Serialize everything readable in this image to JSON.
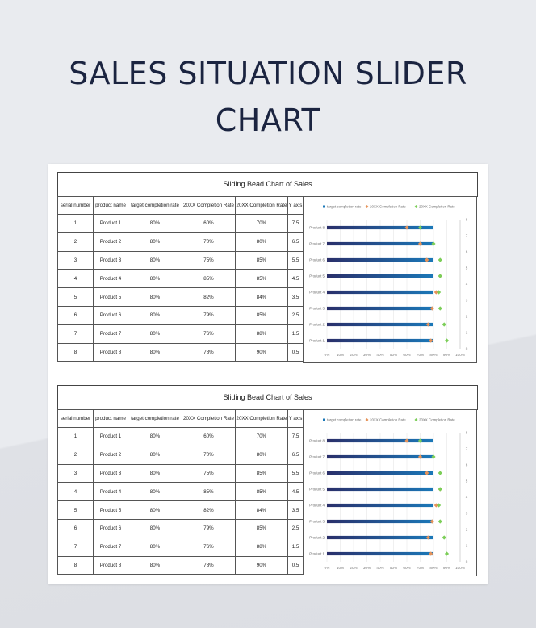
{
  "page": {
    "title_line1": "SALES SITUATION SLIDER",
    "title_line2": "CHART"
  },
  "headers": [
    "serial number",
    "product name",
    "target completion rate",
    "20XX Completion Rate",
    "20XX Completion Rate",
    "Y axis"
  ],
  "rows": [
    [
      "1",
      "Product 1",
      "80%",
      "60%",
      "70%",
      "7.5"
    ],
    [
      "2",
      "Product 2",
      "80%",
      "70%",
      "80%",
      "6.5"
    ],
    [
      "3",
      "Product 3",
      "80%",
      "75%",
      "85%",
      "5.5"
    ],
    [
      "4",
      "Product 4",
      "80%",
      "85%",
      "85%",
      "4.5"
    ],
    [
      "5",
      "Product 5",
      "80%",
      "82%",
      "84%",
      "3.5"
    ],
    [
      "6",
      "Product 6",
      "80%",
      "79%",
      "85%",
      "2.5"
    ],
    [
      "7",
      "Product 7",
      "80%",
      "76%",
      "88%",
      "1.5"
    ],
    [
      "8",
      "Product 8",
      "80%",
      "78%",
      "90%",
      "0.5"
    ]
  ],
  "blocks": [
    {
      "title": "Sliding Bead Chart of Sales"
    },
    {
      "title": "Sliding Bead Chart of Sales"
    }
  ],
  "colors": {
    "bar_start": "#2a2f6a",
    "bar_end": "#1b78b8",
    "orange": "#e6935a",
    "green": "#7cce58",
    "grid": "#e6e6e6",
    "axis_text": "#777777"
  },
  "chart_data": [
    {
      "type": "bar",
      "orientation": "horizontal",
      "categories": [
        "Product 8",
        "Product 7",
        "Product 6",
        "Product 5",
        "Product 4",
        "Product 3",
        "Product 2",
        "Product 1"
      ],
      "series": [
        {
          "name": "target completion rate",
          "values": [
            80,
            80,
            80,
            80,
            80,
            80,
            80,
            80
          ]
        },
        {
          "name": "20XX Completion Rate",
          "values": [
            60,
            70,
            75,
            85,
            82,
            79,
            76,
            78
          ]
        },
        {
          "name": "20XX Completion Rate",
          "values": [
            70,
            80,
            85,
            85,
            84,
            85,
            88,
            90
          ]
        }
      ],
      "x_ticks": [
        "0%",
        "10%",
        "20%",
        "30%",
        "40%",
        "50%",
        "60%",
        "70%",
        "80%",
        "90%",
        "100%"
      ],
      "y2_ticks": [
        "8",
        "7",
        "6",
        "5",
        "4",
        "3",
        "2",
        "1",
        "0"
      ],
      "xlim": [
        0,
        100
      ],
      "y2lim": [
        0,
        8
      ],
      "legend": "top"
    },
    {
      "type": "bar",
      "orientation": "horizontal",
      "categories": [
        "Product 8",
        "Product 7",
        "Product 6",
        "Product 5",
        "Product 4",
        "Product 3",
        "Product 2",
        "Product 1"
      ],
      "series": [
        {
          "name": "target completion rate",
          "values": [
            80,
            80,
            80,
            80,
            80,
            80,
            80,
            80
          ]
        },
        {
          "name": "20XX Completion Rate",
          "values": [
            60,
            70,
            75,
            85,
            82,
            79,
            76,
            78
          ]
        },
        {
          "name": "20XX Completion Rate",
          "values": [
            70,
            80,
            85,
            85,
            84,
            85,
            88,
            90
          ]
        }
      ],
      "x_ticks": [
        "0%",
        "10%",
        "20%",
        "30%",
        "40%",
        "50%",
        "60%",
        "70%",
        "80%",
        "90%",
        "100%"
      ],
      "y2_ticks": [
        "8",
        "7",
        "6",
        "5",
        "4",
        "3",
        "2",
        "1",
        "0"
      ],
      "xlim": [
        0,
        100
      ],
      "y2lim": [
        0,
        8
      ],
      "legend": "top"
    }
  ]
}
